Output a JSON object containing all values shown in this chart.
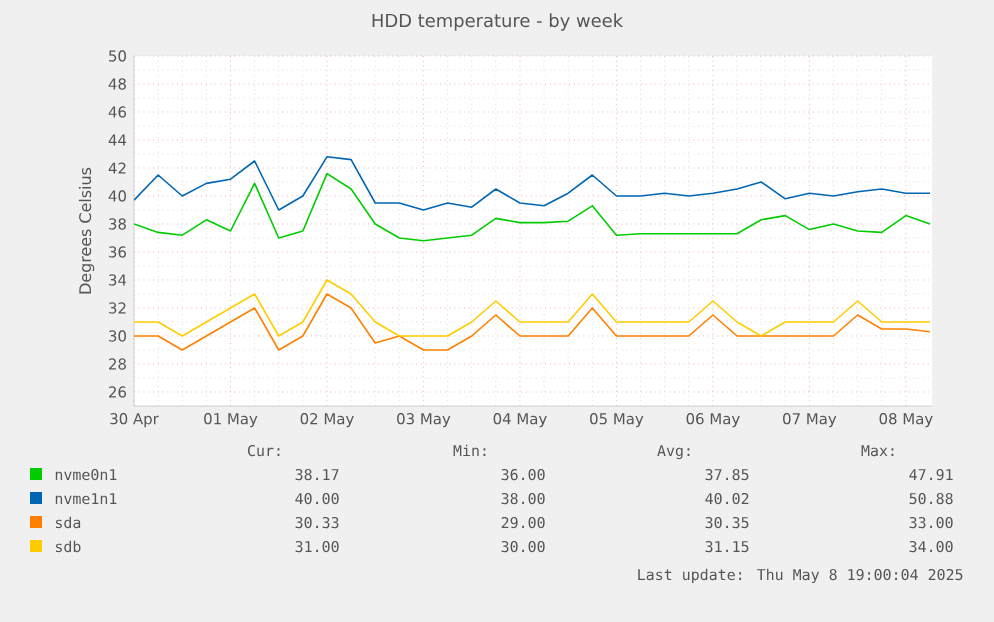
{
  "chart_data": {
    "type": "line",
    "title": "HDD temperature - by week",
    "ylabel": "Degrees Celsius",
    "x": [
      "2025-04-30T00:00",
      "2025-04-30T06:00",
      "2025-04-30T12:00",
      "2025-04-30T18:00",
      "2025-05-01T00:00",
      "2025-05-01T06:00",
      "2025-05-01T12:00",
      "2025-05-01T18:00",
      "2025-05-02T00:00",
      "2025-05-02T06:00",
      "2025-05-02T12:00",
      "2025-05-02T18:00",
      "2025-05-03T00:00",
      "2025-05-03T06:00",
      "2025-05-03T12:00",
      "2025-05-03T18:00",
      "2025-05-04T00:00",
      "2025-05-04T06:00",
      "2025-05-04T12:00",
      "2025-05-04T18:00",
      "2025-05-05T00:00",
      "2025-05-05T06:00",
      "2025-05-05T12:00",
      "2025-05-05T18:00",
      "2025-05-06T00:00",
      "2025-05-06T06:00",
      "2025-05-06T12:00",
      "2025-05-06T18:00",
      "2025-05-07T00:00",
      "2025-05-07T06:00",
      "2025-05-07T12:00",
      "2025-05-07T18:00",
      "2025-05-08T00:00",
      "2025-05-08T06:00"
    ],
    "series": [
      {
        "name": "nvme0n1",
        "color": "#00cc00",
        "values": [
          38.0,
          37.4,
          37.2,
          38.3,
          37.5,
          40.9,
          37.0,
          37.5,
          41.6,
          40.5,
          38.0,
          37.0,
          36.8,
          37.0,
          37.2,
          38.4,
          38.1,
          38.1,
          38.2,
          39.3,
          37.2,
          37.3,
          37.3,
          37.3,
          37.3,
          37.3,
          38.3,
          38.6,
          37.6,
          38.0,
          37.5,
          37.4,
          38.6,
          38.0
        ]
      },
      {
        "name": "nvme1n1",
        "color": "#0066b3",
        "values": [
          39.7,
          41.5,
          40.0,
          40.9,
          41.2,
          42.5,
          39.0,
          40.0,
          42.8,
          42.6,
          39.5,
          39.5,
          39.0,
          39.5,
          39.2,
          40.5,
          39.5,
          39.3,
          40.2,
          41.5,
          40.0,
          40.0,
          40.2,
          40.0,
          40.2,
          40.5,
          41.0,
          39.8,
          40.2,
          40.0,
          40.3,
          40.5,
          40.2,
          40.2
        ]
      },
      {
        "name": "sda",
        "color": "#ff8000",
        "values": [
          30,
          30,
          29,
          30,
          31,
          32,
          29,
          30,
          33,
          32,
          29.5,
          30,
          29,
          29,
          30,
          31.5,
          30,
          30,
          30,
          32,
          30,
          30,
          30,
          30,
          31.5,
          30,
          30,
          30,
          30,
          30,
          31.5,
          30.5,
          30.5,
          30.3
        ]
      },
      {
        "name": "sdb",
        "color": "#ffcc00",
        "values": [
          31,
          31,
          30,
          31,
          32,
          33,
          30,
          31,
          34,
          33,
          31,
          30,
          30,
          30,
          31,
          32.5,
          31,
          31,
          31,
          33,
          31,
          31,
          31,
          31,
          32.5,
          31,
          30,
          31,
          31,
          31,
          32.5,
          31,
          31,
          31
        ]
      }
    ],
    "xlim": [
      "2025-04-30T00:00",
      "2025-05-08T06:30"
    ],
    "xticks": [
      {
        "value": "2025-04-30",
        "label": "30 Apr"
      },
      {
        "value": "2025-05-01",
        "label": "01 May"
      },
      {
        "value": "2025-05-02",
        "label": "02 May"
      },
      {
        "value": "2025-05-03",
        "label": "03 May"
      },
      {
        "value": "2025-05-04",
        "label": "04 May"
      },
      {
        "value": "2025-05-05",
        "label": "05 May"
      },
      {
        "value": "2025-05-06",
        "label": "06 May"
      },
      {
        "value": "2025-05-07",
        "label": "07 May"
      },
      {
        "value": "2025-05-08",
        "label": "08 May"
      }
    ],
    "ylim": [
      25,
      50
    ],
    "yticks": [
      26,
      28,
      30,
      32,
      34,
      36,
      38,
      40,
      42,
      44,
      46,
      48,
      50
    ],
    "grid": true,
    "legend": "bottom",
    "annotations": [
      "Cur:",
      "Min:",
      "Avg:",
      "Max:",
      "38.17",
      "36.00",
      "37.85",
      "47.91",
      "40.00",
      "38.00",
      "40.02",
      "50.88",
      "30.33",
      "29.00",
      "30.35",
      "33.00",
      "31.00",
      "30.00",
      "31.15",
      "34.00",
      "Last update: Thu May 8 19:00:04 2025"
    ]
  }
}
